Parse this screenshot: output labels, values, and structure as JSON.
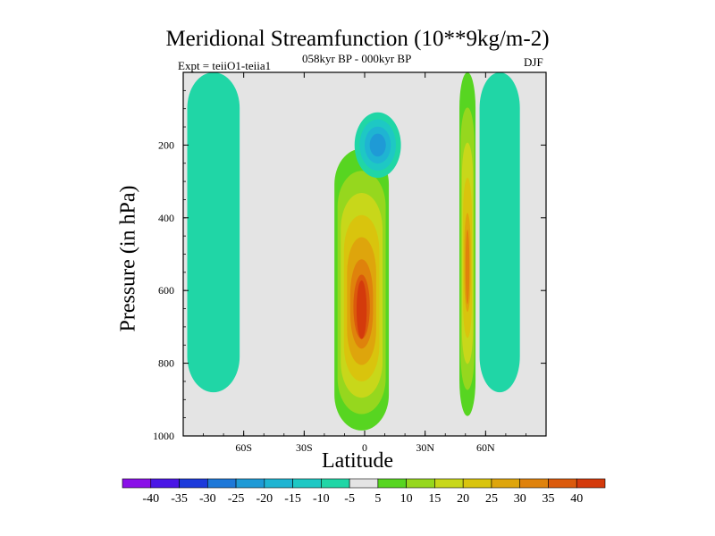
{
  "chart_data": {
    "type": "heatmap",
    "title": "Meridional Streamfunction (10**9kg/m-2)",
    "subtitle_left": "Expt = teiiO1-teiia1",
    "subtitle_center": "058kyr BP - 000kyr BP",
    "subtitle_right": "DJF",
    "xlabel": "Latitude",
    "ylabel": "Pressure (in hPa)",
    "xlim": [
      -90,
      90
    ],
    "ylim": [
      1000,
      0
    ],
    "x_ticks": [
      {
        "value": -60,
        "label": "60S"
      },
      {
        "value": -30,
        "label": "30S"
      },
      {
        "value": 0,
        "label": "0"
      },
      {
        "value": 30,
        "label": "30N"
      },
      {
        "value": 60,
        "label": "60N"
      }
    ],
    "y_ticks": [
      200,
      400,
      600,
      800,
      1000
    ],
    "grid": false,
    "legend": "bottom",
    "colorbar_labels": [
      "-40",
      "-35",
      "-30",
      "-25",
      "-20",
      "-15",
      "-10",
      "-5",
      "5",
      "10",
      "15",
      "20",
      "25",
      "30",
      "35",
      "40"
    ],
    "colorbar_colors": [
      "#8a10e8",
      "#4a16e6",
      "#1c3adb",
      "#1e78d8",
      "#1f9ad6",
      "#1fb4d2",
      "#1ec8c4",
      "#20d6a6",
      "#e4e4e4",
      "#57d521",
      "#96d71e",
      "#c8d71a",
      "#d9c40d",
      "#dea50c",
      "#df820c",
      "#db5a0c",
      "#d43a0c"
    ],
    "background_color": "#e4e4e4",
    "features": [
      {
        "name": "tropical positive cell",
        "lat_range": [
          -15,
          12
        ],
        "pressure_range": [
          210,
          985
        ],
        "peak": 40
      },
      {
        "name": "upper negative cell",
        "lat_range": [
          -5,
          18
        ],
        "pressure_range": [
          110,
          290
        ],
        "peak": -20
      },
      {
        "name": "northern positive band",
        "lat_range": [
          47,
          55
        ],
        "pressure_range": [
          0,
          945
        ],
        "peak": 30
      },
      {
        "name": "southern weak negative band",
        "lat_range": [
          -88,
          -62
        ],
        "pressure_range": [
          0,
          880
        ],
        "peak": -5
      },
      {
        "name": "northern weak negative band",
        "lat_range": [
          57,
          77
        ],
        "pressure_range": [
          0,
          880
        ],
        "peak": -5
      }
    ]
  }
}
